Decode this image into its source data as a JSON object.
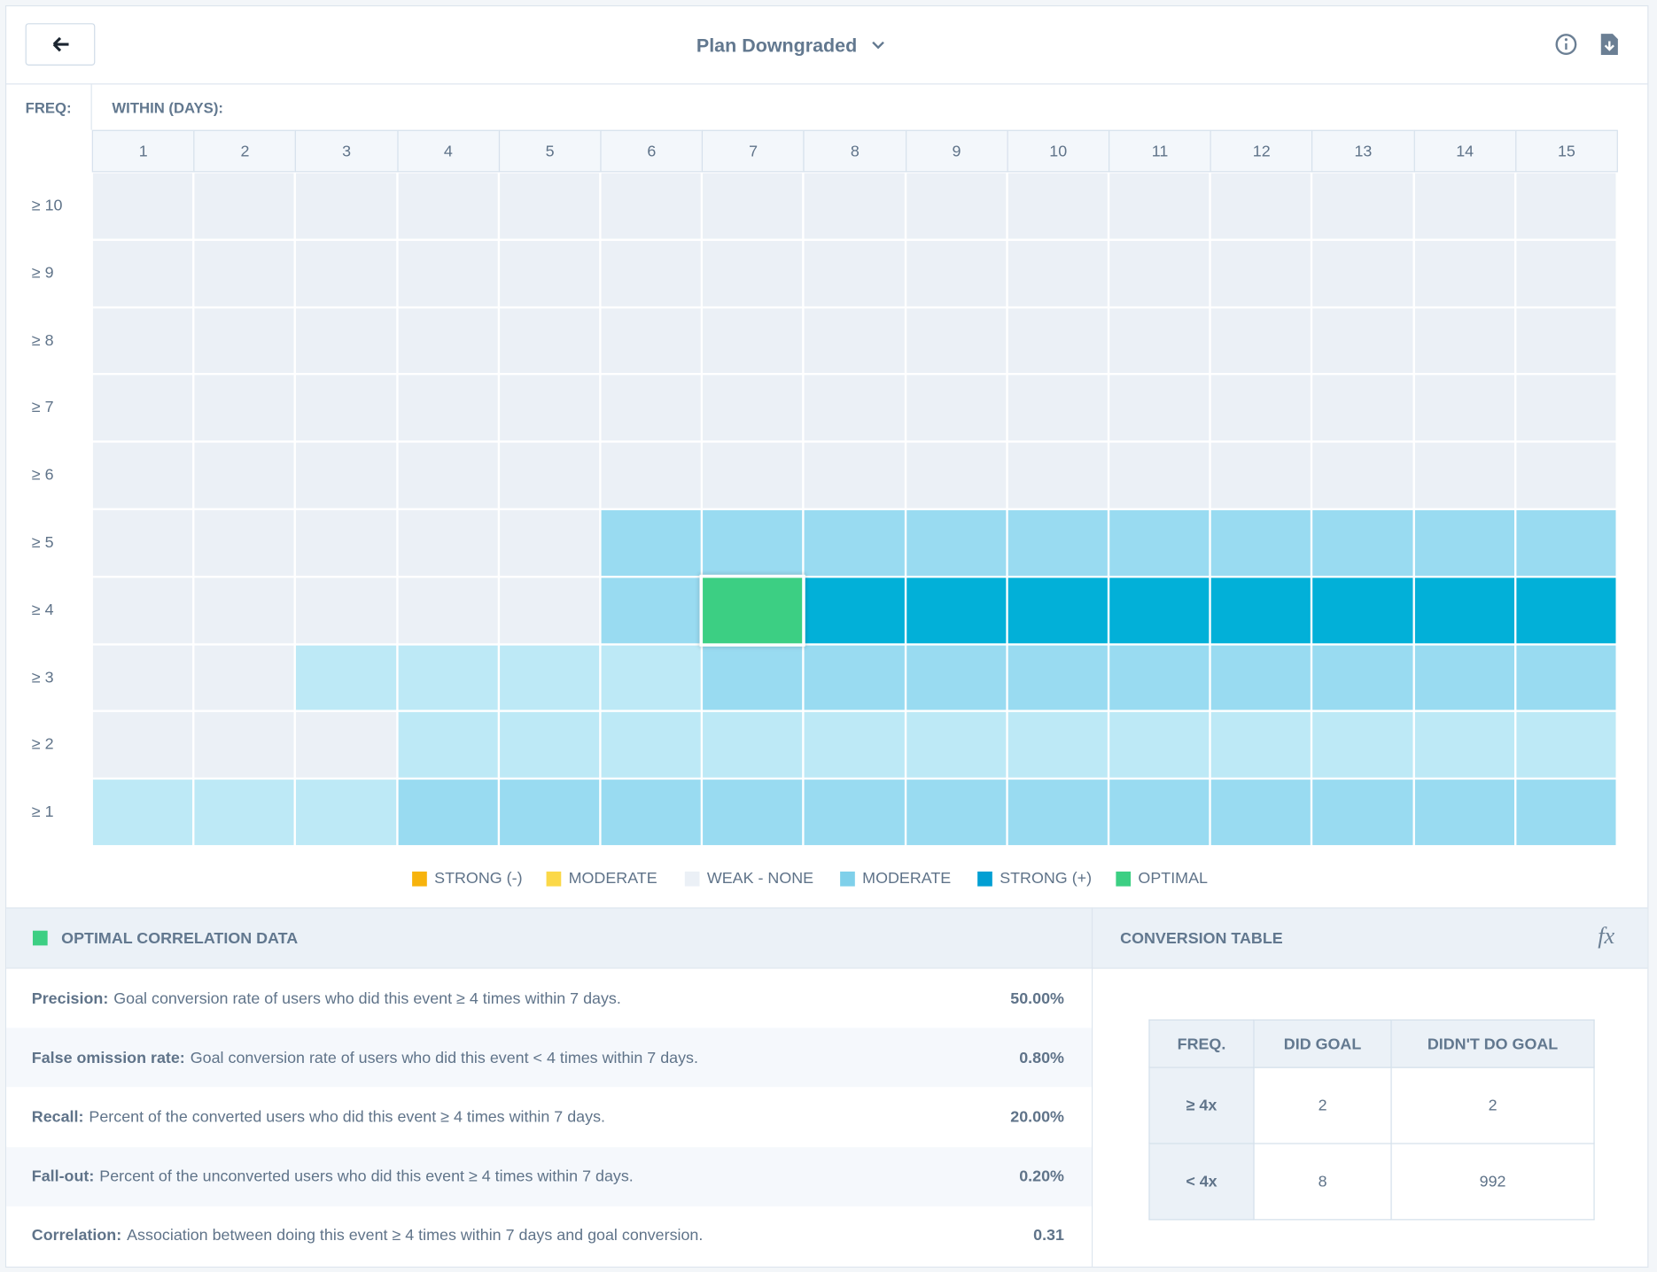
{
  "header": {
    "title": "Plan Downgraded"
  },
  "heatmap": {
    "freq_label": "FREQ:",
    "within_label": "WITHIN (DAYS):",
    "columns": [
      1,
      2,
      3,
      4,
      5,
      6,
      7,
      8,
      9,
      10,
      11,
      12,
      13,
      14,
      15
    ],
    "rows": [
      "≥ 10",
      "≥ 9",
      "≥ 8",
      "≥ 7",
      "≥ 6",
      "≥ 5",
      "≥ 4",
      "≥ 3",
      "≥ 2",
      "≥ 1"
    ],
    "cells": [
      [
        "#ebf0f6",
        "#ebf0f6",
        "#ebf0f6",
        "#ebf0f6",
        "#ebf0f6",
        "#ebf0f6",
        "#ebf0f6",
        "#ebf0f6",
        "#ebf0f6",
        "#ebf0f6",
        "#ebf0f6",
        "#ebf0f6",
        "#ebf0f6",
        "#ebf0f6",
        "#ebf0f6"
      ],
      [
        "#ebf0f6",
        "#ebf0f6",
        "#ebf0f6",
        "#ebf0f6",
        "#ebf0f6",
        "#ebf0f6",
        "#ebf0f6",
        "#ebf0f6",
        "#ebf0f6",
        "#ebf0f6",
        "#ebf0f6",
        "#ebf0f6",
        "#ebf0f6",
        "#ebf0f6",
        "#ebf0f6"
      ],
      [
        "#ebf0f6",
        "#ebf0f6",
        "#ebf0f6",
        "#ebf0f6",
        "#ebf0f6",
        "#ebf0f6",
        "#ebf0f6",
        "#ebf0f6",
        "#ebf0f6",
        "#ebf0f6",
        "#ebf0f6",
        "#ebf0f6",
        "#ebf0f6",
        "#ebf0f6",
        "#ebf0f6"
      ],
      [
        "#ebf0f6",
        "#ebf0f6",
        "#ebf0f6",
        "#ebf0f6",
        "#ebf0f6",
        "#ebf0f6",
        "#ebf0f6",
        "#ebf0f6",
        "#ebf0f6",
        "#ebf0f6",
        "#ebf0f6",
        "#ebf0f6",
        "#ebf0f6",
        "#ebf0f6",
        "#ebf0f6"
      ],
      [
        "#ebf0f6",
        "#ebf0f6",
        "#ebf0f6",
        "#ebf0f6",
        "#ebf0f6",
        "#ebf0f6",
        "#ebf0f6",
        "#ebf0f6",
        "#ebf0f6",
        "#ebf0f6",
        "#ebf0f6",
        "#ebf0f6",
        "#ebf0f6",
        "#ebf0f6",
        "#ebf0f6"
      ],
      [
        "#ebf0f6",
        "#ebf0f6",
        "#ebf0f6",
        "#ebf0f6",
        "#ebf0f6",
        "#99dbf1",
        "#99dbf1",
        "#99dbf1",
        "#99dbf1",
        "#99dbf1",
        "#99dbf1",
        "#99dbf1",
        "#99dbf1",
        "#99dbf1",
        "#99dbf1"
      ],
      [
        "#ebf0f6",
        "#ebf0f6",
        "#ebf0f6",
        "#ebf0f6",
        "#ebf0f6",
        "#99dbf1",
        "#3ccf83",
        "#02b0d8",
        "#02b0d8",
        "#02b0d8",
        "#02b0d8",
        "#02b0d8",
        "#02b0d8",
        "#02b0d8",
        "#02b0d8"
      ],
      [
        "#ebf0f6",
        "#ebf0f6",
        "#bde9f6",
        "#bde9f6",
        "#bde9f6",
        "#bde9f6",
        "#99dbf1",
        "#99dbf1",
        "#99dbf1",
        "#99dbf1",
        "#99dbf1",
        "#99dbf1",
        "#99dbf1",
        "#99dbf1",
        "#99dbf1"
      ],
      [
        "#ebf0f6",
        "#ebf0f6",
        "#ebf0f6",
        "#bde9f6",
        "#bde9f6",
        "#bde9f6",
        "#bde9f6",
        "#bde9f6",
        "#bde9f6",
        "#bde9f6",
        "#bde9f6",
        "#bde9f6",
        "#bde9f6",
        "#bde9f6",
        "#bde9f6"
      ],
      [
        "#bde9f6",
        "#bde9f6",
        "#bde9f6",
        "#99dbf1",
        "#99dbf1",
        "#99dbf1",
        "#99dbf1",
        "#99dbf1",
        "#99dbf1",
        "#99dbf1",
        "#99dbf1",
        "#99dbf1",
        "#99dbf1",
        "#99dbf1",
        "#99dbf1"
      ]
    ]
  },
  "legend": [
    {
      "name": "STRONG (-)",
      "color": "#f7b30c"
    },
    {
      "name": "MODERATE",
      "color": "#fbd848"
    },
    {
      "name": "WEAK - NONE",
      "color": "#ebf0f6"
    },
    {
      "name": "MODERATE",
      "color": "#7fd0ea"
    },
    {
      "name": "STRONG (+)",
      "color": "#029fd3"
    },
    {
      "name": "OPTIMAL",
      "color": "#3ccf83"
    }
  ],
  "optimal": {
    "title": "OPTIMAL CORRELATION DATA",
    "color": "#3ccf83",
    "metrics": [
      {
        "label": "Precision:",
        "text": "Goal conversion rate of users who did this event ≥ 4 times within 7 days.",
        "value": "50.00%"
      },
      {
        "label": "False omission rate:",
        "text": "Goal conversion rate of users who did this event < 4 times within 7 days.",
        "value": "0.80%"
      },
      {
        "label": "Recall:",
        "text": "Percent of the converted users who did this event ≥ 4 times within 7 days.",
        "value": "20.00%"
      },
      {
        "label": "Fall-out:",
        "text": "Percent of the unconverted users who did this event ≥ 4 times within 7 days.",
        "value": "0.20%"
      },
      {
        "label": "Correlation:",
        "text": "Association between doing this event ≥ 4 times within 7 days and goal conversion.",
        "value": "0.31"
      }
    ]
  },
  "conversion": {
    "title": "CONVERSION TABLE",
    "fx": "fx",
    "headers": [
      "FREQ.",
      "DID GOAL",
      "DIDN'T DO GOAL"
    ],
    "rows": [
      [
        "≥ 4x",
        2,
        2
      ],
      [
        "< 4x",
        8,
        992
      ]
    ]
  }
}
